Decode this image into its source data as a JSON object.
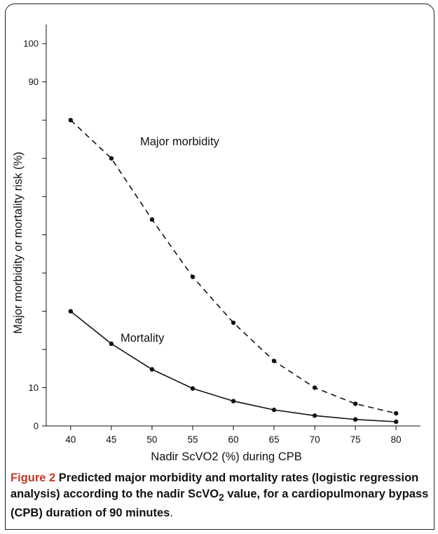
{
  "chart_data": {
    "type": "line",
    "title": "",
    "xlabel": "Nadir ScVO2 (%) during CPB",
    "ylabel": "Major morbidity or mortality risk (%)",
    "x": [
      40,
      45,
      50,
      55,
      60,
      65,
      70,
      75,
      80
    ],
    "xlim": [
      37,
      83
    ],
    "ylim": [
      0,
      105
    ],
    "x_ticks": [
      "40",
      "45",
      "50",
      "55",
      "60",
      "65",
      "70",
      "75",
      "80"
    ],
    "y_ticks": [
      {
        "value": 0,
        "label": "0"
      },
      {
        "value": 10,
        "label": "10"
      },
      {
        "value": 20,
        "label": ""
      },
      {
        "value": 30,
        "label": ""
      },
      {
        "value": 40,
        "label": ""
      },
      {
        "value": 50,
        "label": ""
      },
      {
        "value": 60,
        "label": ""
      },
      {
        "value": 70,
        "label": ""
      },
      {
        "value": 80,
        "label": ""
      },
      {
        "value": 90,
        "label": "90"
      },
      {
        "value": 100,
        "label": "100"
      }
    ],
    "grid": false,
    "series": [
      {
        "name": "Major morbidity",
        "style": "dashed",
        "color": "#111111",
        "values": [
          80,
          70,
          54,
          39,
          27,
          17,
          10,
          5.8,
          3.3
        ]
      },
      {
        "name": "Mortality",
        "style": "solid",
        "color": "#111111",
        "values": [
          30,
          21.5,
          14.8,
          9.8,
          6.5,
          4.2,
          2.7,
          1.7,
          1.1
        ]
      }
    ],
    "annotations": [
      {
        "text": "Major morbidity",
        "series": "Major morbidity"
      },
      {
        "text": "Mortality",
        "series": "Mortality"
      }
    ]
  },
  "caption": {
    "label": "Figure 2",
    "text_part1": " Predicted major morbidity and mortality rates (logistic regression analysis) according to the nadir ScVO",
    "subscript": "2",
    "text_part2": " value, for a cardiopulmonary bypass (CPB) duration of 90 minutes",
    "end_punct": "."
  }
}
